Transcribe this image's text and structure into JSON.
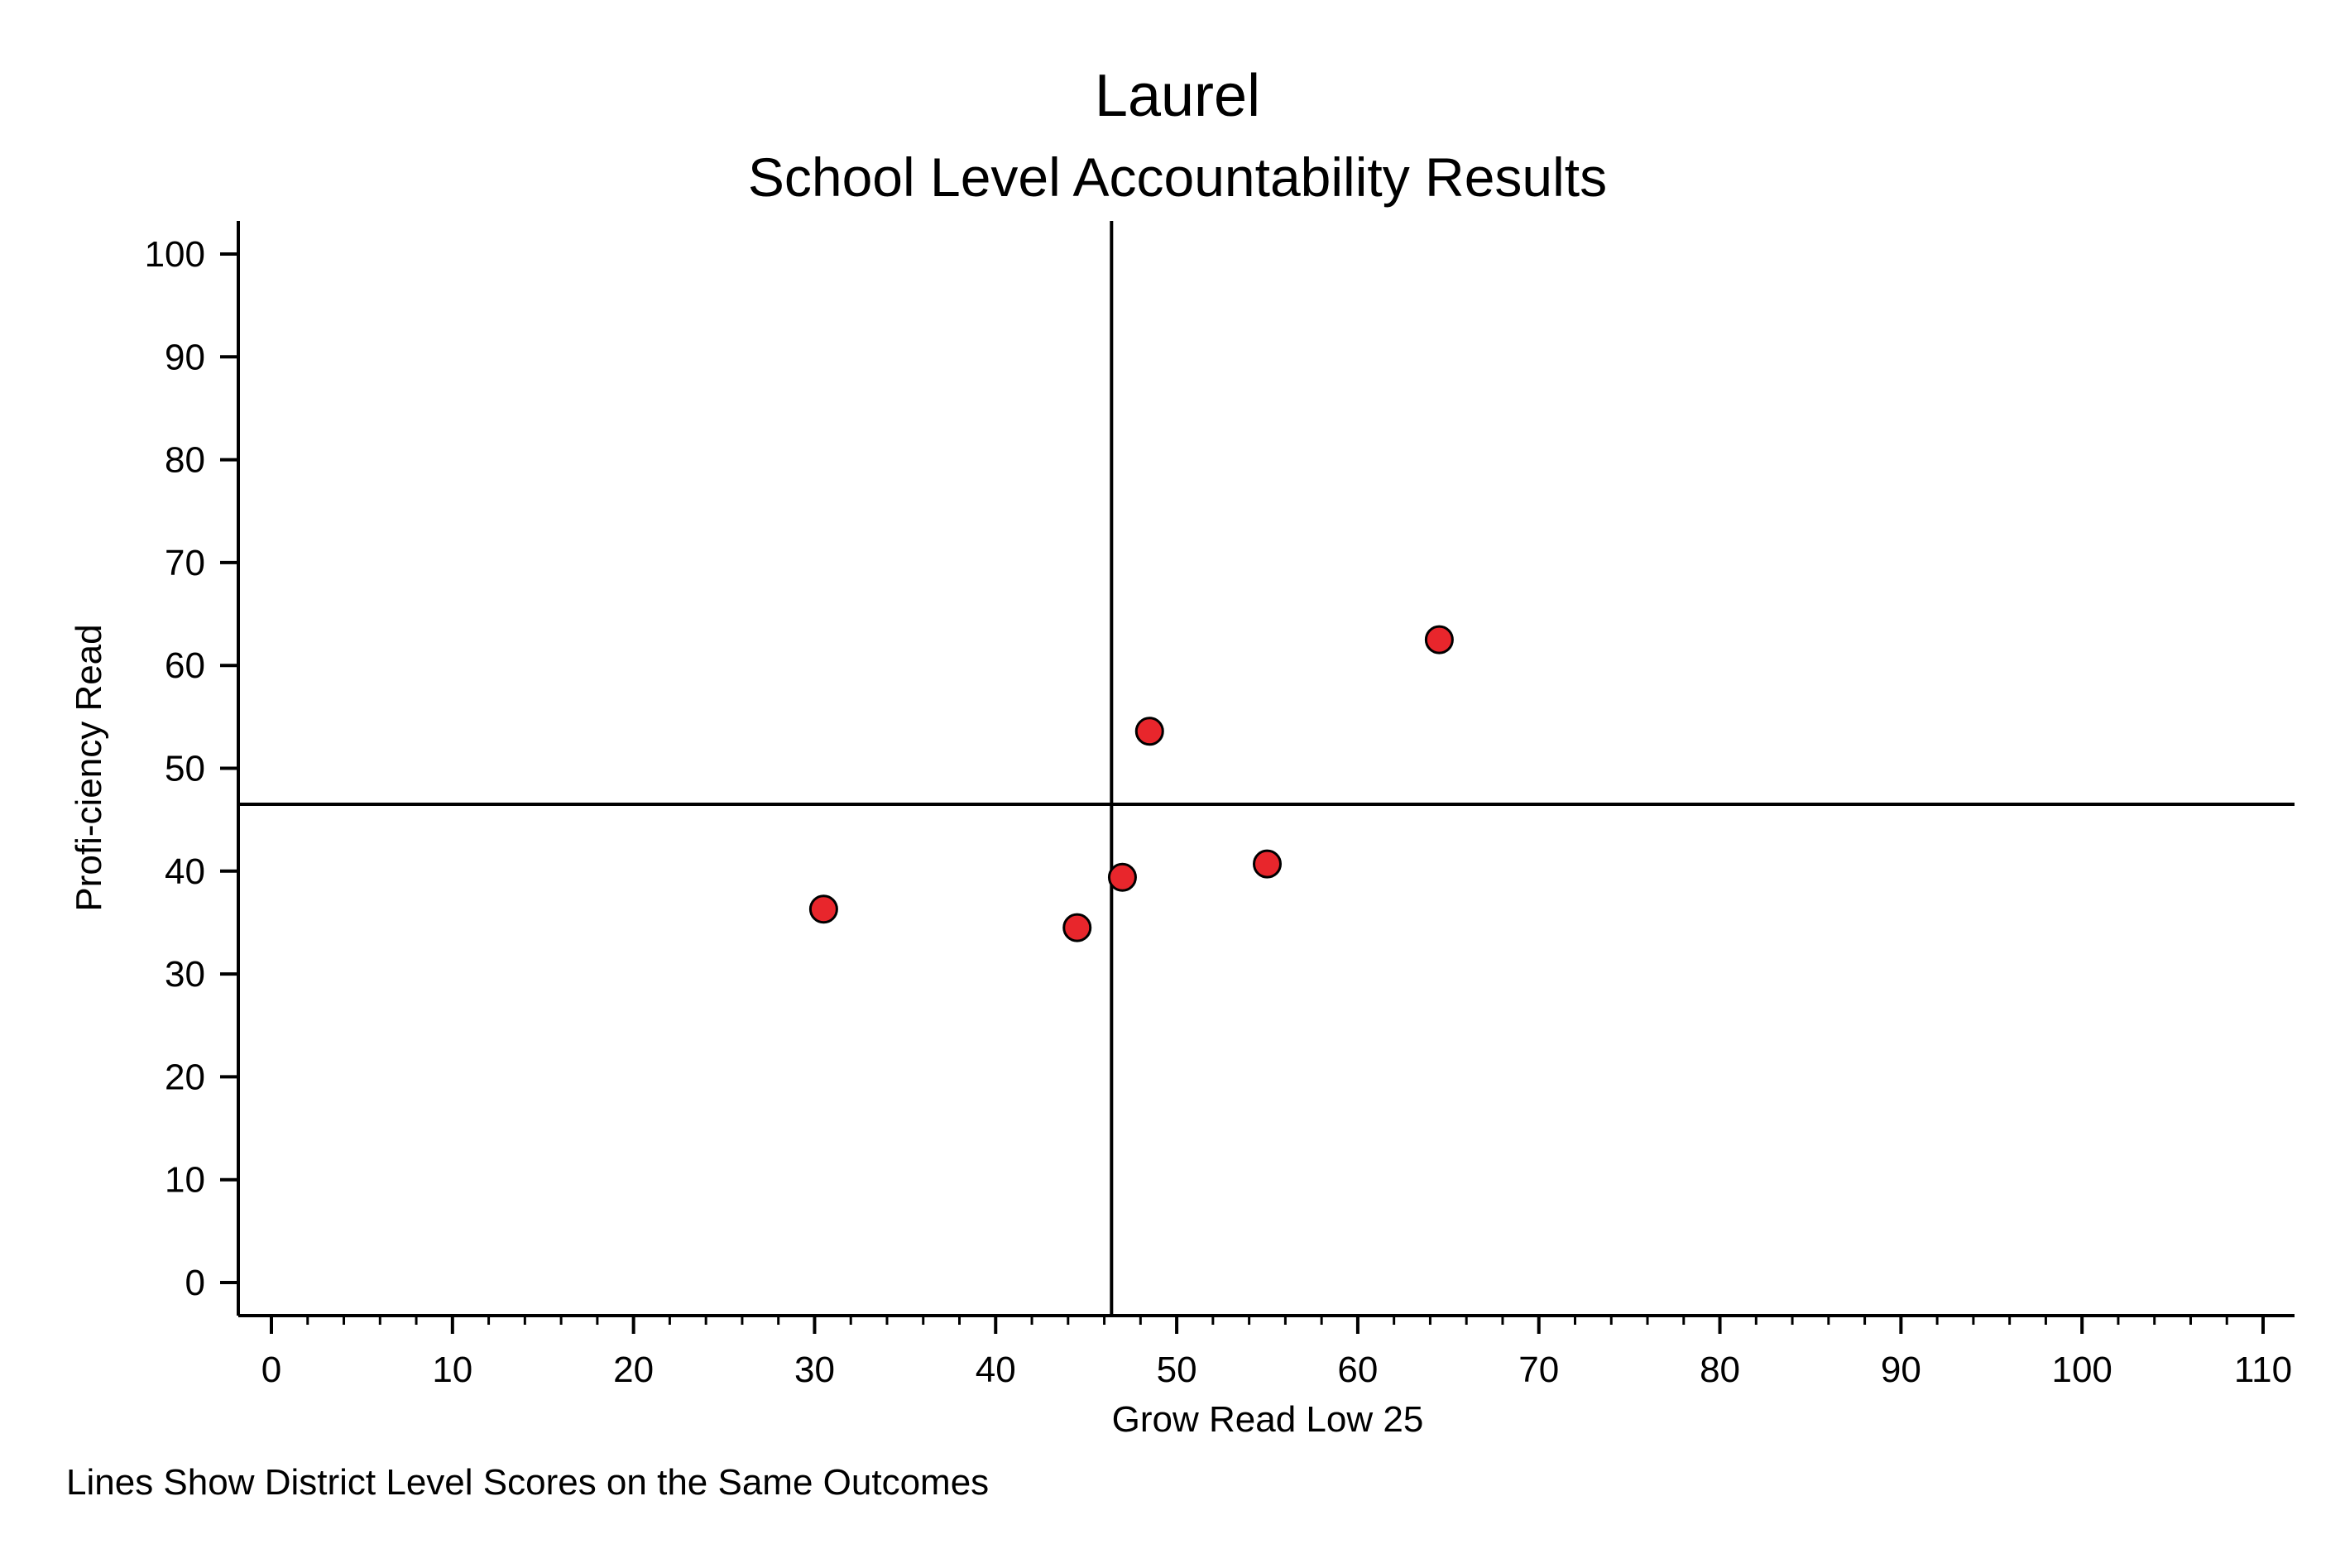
{
  "chart_data": {
    "type": "scatter",
    "title": "Laurel",
    "subtitle": "School Level Accountability Results",
    "xlabel": "Grow Read Low 25",
    "ylabel": "Profi-ciency Read",
    "note": "Lines Show District Level Scores on the Same Outcomes",
    "xlim": [
      -2,
      112
    ],
    "ylim": [
      -3.5,
      103.5
    ],
    "xticks": [
      0,
      10,
      20,
      30,
      40,
      50,
      60,
      70,
      80,
      90,
      100,
      110
    ],
    "yticks": [
      0,
      10,
      20,
      30,
      40,
      50,
      60,
      70,
      80,
      90,
      100
    ],
    "reference_lines": {
      "x": 46.4,
      "y": 46.5
    },
    "points": [
      {
        "x": 30.5,
        "y": 36.3
      },
      {
        "x": 44.5,
        "y": 34.5
      },
      {
        "x": 47.0,
        "y": 39.4
      },
      {
        "x": 48.5,
        "y": 53.6
      },
      {
        "x": 55.0,
        "y": 40.7
      },
      {
        "x": 64.5,
        "y": 62.5
      }
    ],
    "grid": false,
    "marker_color": "#e8262c",
    "marker_edge_color": "#000000"
  }
}
